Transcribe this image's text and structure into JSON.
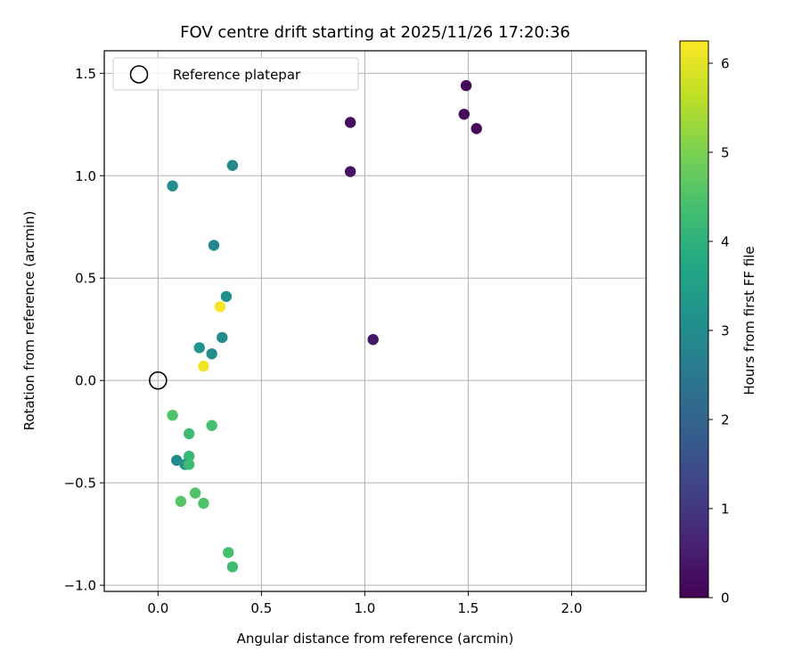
{
  "chart_data": {
    "type": "scatter",
    "title": "FOV centre drift starting at 2025/11/26 17:20:36",
    "xlabel": "Angular distance from reference (arcmin)",
    "ylabel": "Rotation from reference (arcmin)",
    "xlim": [
      -0.26,
      2.36
    ],
    "ylim": [
      -1.03,
      1.61
    ],
    "xticks": [
      0.0,
      0.5,
      1.0,
      1.5,
      2.0
    ],
    "xtick_labels": [
      "0.0",
      "0.5",
      "1.0",
      "1.5",
      "2.0"
    ],
    "yticks": [
      1.5,
      1.0,
      0.5,
      0.0,
      -0.5,
      -1.0
    ],
    "ytick_labels": [
      "1.5",
      "1.0",
      "0.5",
      "0.0",
      "−0.5",
      "−1.0"
    ],
    "grid": true,
    "legend": {
      "position": "top-left",
      "label": "Reference platepar"
    },
    "reference_point": {
      "x": 0.0,
      "y": 0.0
    },
    "colorbar": {
      "label": "Hours from first FF file",
      "colormap": "viridis",
      "range": [
        0,
        6.25
      ],
      "ticks": [
        0,
        1,
        2,
        3,
        4,
        5,
        6
      ],
      "tick_labels": [
        "0",
        "1",
        "2",
        "3",
        "4",
        "5",
        "6"
      ]
    },
    "points": [
      {
        "x": 1.49,
        "y": 1.44,
        "hours": 0.1
      },
      {
        "x": 0.93,
        "y": 1.26,
        "hours": 0.2
      },
      {
        "x": 1.48,
        "y": 1.3,
        "hours": 0.15
      },
      {
        "x": 1.54,
        "y": 1.23,
        "hours": 0.1
      },
      {
        "x": 0.93,
        "y": 1.02,
        "hours": 0.3
      },
      {
        "x": 1.04,
        "y": 0.2,
        "hours": 0.4
      },
      {
        "x": 0.36,
        "y": 1.05,
        "hours": 2.9
      },
      {
        "x": 0.07,
        "y": 0.95,
        "hours": 3.0
      },
      {
        "x": 0.27,
        "y": 0.66,
        "hours": 2.9
      },
      {
        "x": 0.33,
        "y": 0.41,
        "hours": 3.1
      },
      {
        "x": 0.3,
        "y": 0.36,
        "hours": 6.2
      },
      {
        "x": 0.31,
        "y": 0.21,
        "hours": 3.0
      },
      {
        "x": 0.2,
        "y": 0.16,
        "hours": 3.2
      },
      {
        "x": 0.26,
        "y": 0.13,
        "hours": 3.0
      },
      {
        "x": 0.22,
        "y": 0.07,
        "hours": 6.1
      },
      {
        "x": 0.07,
        "y": -0.17,
        "hours": 4.5
      },
      {
        "x": 0.26,
        "y": -0.22,
        "hours": 4.4
      },
      {
        "x": 0.15,
        "y": -0.26,
        "hours": 4.3
      },
      {
        "x": 0.09,
        "y": -0.39,
        "hours": 3.0
      },
      {
        "x": 0.15,
        "y": -0.37,
        "hours": 4.2
      },
      {
        "x": 0.13,
        "y": -0.41,
        "hours": 3.2
      },
      {
        "x": 0.15,
        "y": -0.41,
        "hours": 4.3
      },
      {
        "x": 0.18,
        "y": -0.55,
        "hours": 4.5
      },
      {
        "x": 0.11,
        "y": -0.59,
        "hours": 4.6
      },
      {
        "x": 0.22,
        "y": -0.6,
        "hours": 4.5
      },
      {
        "x": 0.34,
        "y": -0.84,
        "hours": 4.4
      },
      {
        "x": 0.36,
        "y": -0.91,
        "hours": 4.3
      }
    ]
  }
}
